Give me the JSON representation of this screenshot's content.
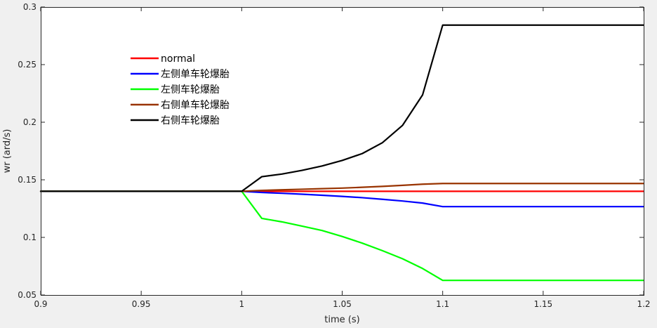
{
  "chart_data": {
    "type": "line",
    "title": "",
    "xlabel": "time (s)",
    "ylabel": "wr (ard/s)",
    "xlim": [
      0.9,
      1.2
    ],
    "ylim": [
      0.05,
      0.3
    ],
    "xticks": [
      0.9,
      0.95,
      1,
      1.05,
      1.1,
      1.15,
      1.2
    ],
    "xtick_labels": [
      "0.9",
      "0.95",
      "1",
      "1.05",
      "1.1",
      "1.15",
      "1.2"
    ],
    "yticks": [
      0.05,
      0.1,
      0.15,
      0.2,
      0.25,
      0.3
    ],
    "ytick_labels": [
      "0.05",
      "0.1",
      "0.15",
      "0.2",
      "0.25",
      "0.3"
    ],
    "grid": false,
    "legend_position": "upper-left inside",
    "background_color": "#ffffff",
    "figure_color": "#f0f0f0",
    "series": [
      {
        "name": "normal",
        "color": "#ff0000",
        "x": [
          0.9,
          1.0,
          1.1,
          1.2
        ],
        "y": [
          0.14,
          0.14,
          0.14,
          0.14
        ]
      },
      {
        "name": "左侧单车轮爆胎",
        "color": "#0000ff",
        "x": [
          0.9,
          1.0,
          1.01,
          1.02,
          1.03,
          1.04,
          1.05,
          1.06,
          1.07,
          1.08,
          1.09,
          1.1,
          1.2
        ],
        "y": [
          0.14,
          0.14,
          0.139,
          0.1383,
          0.1375,
          0.1366,
          0.1356,
          0.1345,
          0.1331,
          0.1316,
          0.1298,
          0.1267,
          0.1267
        ]
      },
      {
        "name": "左侧车轮爆胎",
        "color": "#00ff00",
        "x": [
          0.9,
          1.0,
          1.01,
          1.02,
          1.03,
          1.04,
          1.05,
          1.06,
          1.07,
          1.08,
          1.09,
          1.1,
          1.2
        ],
        "y": [
          0.14,
          0.14,
          0.1165,
          0.1135,
          0.1098,
          0.106,
          0.1008,
          0.095,
          0.0885,
          0.0815,
          0.073,
          0.0627,
          0.0627
        ]
      },
      {
        "name": "右侧单车轮爆胎",
        "color": "#993300",
        "x": [
          0.9,
          1.0,
          1.01,
          1.02,
          1.03,
          1.04,
          1.05,
          1.06,
          1.07,
          1.08,
          1.09,
          1.1,
          1.2
        ],
        "y": [
          0.14,
          0.14,
          0.1408,
          0.1413,
          0.1418,
          0.1423,
          0.1428,
          0.1435,
          0.1443,
          0.1452,
          0.1462,
          0.1468,
          0.1468
        ]
      },
      {
        "name": "右侧车轮爆胎",
        "color": "#000000",
        "x": [
          0.9,
          1.0,
          1.01,
          1.02,
          1.03,
          1.04,
          1.05,
          1.06,
          1.07,
          1.08,
          1.09,
          1.1,
          1.2
        ],
        "y": [
          0.14,
          0.14,
          0.1527,
          0.155,
          0.1582,
          0.162,
          0.1668,
          0.1728,
          0.1822,
          0.1972,
          0.2237,
          0.2843,
          0.2843
        ]
      }
    ]
  }
}
